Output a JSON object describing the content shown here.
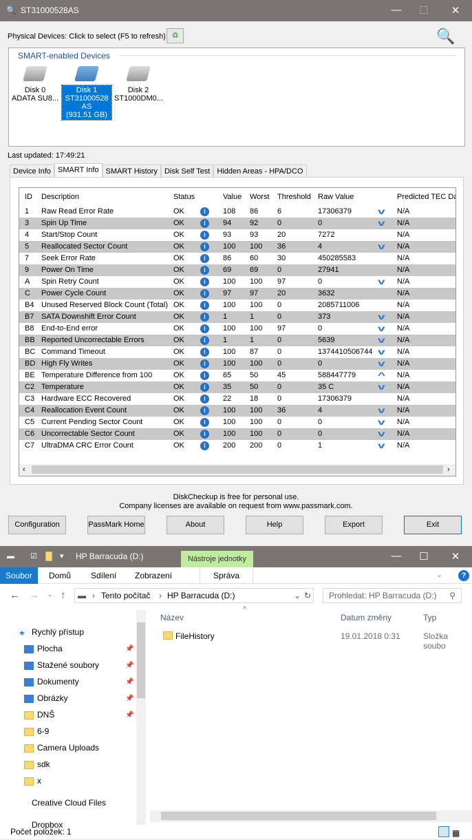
{
  "window": {
    "title": "ST31000528AS",
    "minimize": "—",
    "maximize": "☐",
    "close": "✕"
  },
  "toolbar": {
    "devices_label": "Physical Devices: Click to select (F5 to refresh)"
  },
  "devices": {
    "group_label": "SMART-enabled Devices",
    "items": [
      {
        "name": "Disk 0",
        "model": "ADATA SU8...",
        "size": "",
        "selected": false
      },
      {
        "name": "Disk 1",
        "model": "ST31000528AS",
        "size": "(931.51 GB)",
        "selected": true
      },
      {
        "name": "Disk 2",
        "model": "ST1000DM0...",
        "size": "",
        "selected": false
      }
    ]
  },
  "last_updated": "Last updated:  17:49:21",
  "tabs": [
    "Device Info",
    "SMART Info",
    "SMART History",
    "Disk Self Test",
    "Hidden Areas - HPA/DCO"
  ],
  "active_tab": "SMART Info",
  "table": {
    "columns": [
      "ID",
      "Description",
      "Status",
      "",
      "Value",
      "Worst",
      "Threshold",
      "Raw Value",
      "",
      "Predicted TEC Da"
    ],
    "rows": [
      [
        "1",
        "Raw Read Error Rate",
        "OK",
        "108",
        "86",
        "6",
        "17306379",
        "down",
        "N/A"
      ],
      [
        "3",
        "Spin Up Time",
        "OK",
        "94",
        "92",
        "0",
        "0",
        "down",
        "N/A"
      ],
      [
        "4",
        "Start/Stop Count",
        "OK",
        "93",
        "93",
        "20",
        "7272",
        "",
        "N/A"
      ],
      [
        "5",
        "Reallocated Sector Count",
        "OK",
        "100",
        "100",
        "36",
        "4",
        "down",
        "N/A"
      ],
      [
        "7",
        "Seek Error Rate",
        "OK",
        "86",
        "60",
        "30",
        "450285583",
        "",
        "N/A"
      ],
      [
        "9",
        "Power On Time",
        "OK",
        "69",
        "69",
        "0",
        "27941",
        "",
        "N/A"
      ],
      [
        "A",
        "Spin Retry Count",
        "OK",
        "100",
        "100",
        "97",
        "0",
        "down",
        "N/A"
      ],
      [
        "C",
        "Power Cycle Count",
        "OK",
        "97",
        "97",
        "20",
        "3632",
        "",
        "N/A"
      ],
      [
        "B4",
        "Unused Reserved Block Count (Total)",
        "OK",
        "100",
        "100",
        "0",
        "2085711006",
        "",
        "N/A"
      ],
      [
        "B7",
        "SATA Downshift Error Count",
        "OK",
        "1",
        "1",
        "0",
        "373",
        "down",
        "N/A"
      ],
      [
        "B8",
        "End-to-End error",
        "OK",
        "100",
        "100",
        "97",
        "0",
        "down",
        "N/A"
      ],
      [
        "BB",
        "Reported Uncorrectable Errors",
        "OK",
        "1",
        "1",
        "0",
        "5639",
        "down",
        "N/A"
      ],
      [
        "BC",
        "Command Timeout",
        "OK",
        "100",
        "87",
        "0",
        "1374410506744",
        "down",
        "N/A"
      ],
      [
        "BD",
        "High Fly Writes",
        "OK",
        "100",
        "100",
        "0",
        "0",
        "down",
        "N/A"
      ],
      [
        "BE",
        "Temperature Difference from 100",
        "OK",
        "65",
        "50",
        "45",
        "588447779",
        "up",
        "N/A"
      ],
      [
        "C2",
        "Temperature",
        "OK",
        "35",
        "50",
        "0",
        "35 C",
        "down",
        "N/A"
      ],
      [
        "C3",
        "Hardware ECC Recovered",
        "OK",
        "22",
        "18",
        "0",
        "17306379",
        "",
        "N/A"
      ],
      [
        "C4",
        "Reallocation Event Count",
        "OK",
        "100",
        "100",
        "36",
        "4",
        "down",
        "N/A"
      ],
      [
        "C5",
        "Current Pending Sector Count",
        "OK",
        "100",
        "100",
        "0",
        "0",
        "down",
        "N/A"
      ],
      [
        "C6",
        "Uncorrectable Sector Count",
        "OK",
        "100",
        "100",
        "0",
        "0",
        "down",
        "N/A"
      ],
      [
        "C7",
        "UltraDMA CRC Error Count",
        "OK",
        "200",
        "200",
        "0",
        "1",
        "down",
        "N/A"
      ]
    ]
  },
  "footer": {
    "line1": "DiskCheckup is free for personal use.",
    "line2": "Company licenses are available on request from www.passmark.com."
  },
  "buttons": [
    "Configuration",
    "PassMark Home",
    "About",
    "Help",
    "Export",
    "Exit"
  ],
  "explorer": {
    "title": "HP Barracuda (D:)",
    "context_tab": "Nástroje jednotky",
    "context_color": "#c0eca0",
    "ribbon": [
      "Soubor",
      "Domů",
      "Sdílení",
      "Zobrazení",
      "Správa"
    ],
    "address": [
      "Tento počítač",
      "HP Barracuda (D:)"
    ],
    "search_placeholder": "Prohledat: HP Barracuda (D:)",
    "nav": [
      {
        "label": "Rychlý přístup",
        "pin": false
      },
      {
        "label": "Plocha",
        "pin": true
      },
      {
        "label": "Stažené soubory",
        "pin": true
      },
      {
        "label": "Dokumenty",
        "pin": true
      },
      {
        "label": "Obrázky",
        "pin": true
      },
      {
        "label": "DNŠ",
        "pin": true
      },
      {
        "label": "6-9",
        "pin": false
      },
      {
        "label": "Camera Uploads",
        "pin": false
      },
      {
        "label": "sdk",
        "pin": false
      },
      {
        "label": "x",
        "pin": false
      },
      {
        "label": "Creative Cloud Files",
        "pin": false
      },
      {
        "label": "Dropbox",
        "pin": false
      }
    ],
    "columns": [
      "Název",
      "Datum změny",
      "Typ"
    ],
    "files": [
      {
        "name": "FileHistory",
        "date": "19.01.2018 0:31",
        "type": "Složka soubo"
      }
    ],
    "status": "Počet položek: 1"
  }
}
